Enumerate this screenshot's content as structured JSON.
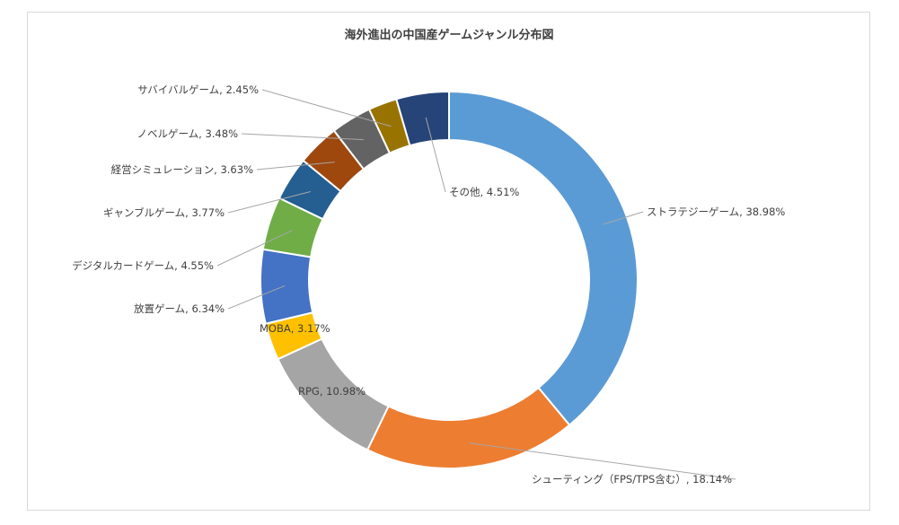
{
  "chart_data": {
    "type": "pie",
    "variant": "doughnut",
    "title": "海外進出の中国産ゲームジャンル分布図",
    "slices": [
      {
        "label": "ストラテジーゲーム",
        "value": 38.98,
        "display": "ストラテジーゲーム, 38.98%",
        "color": "#5b9bd5"
      },
      {
        "label": "シューティング（FPS/TPS含む）",
        "value": 18.14,
        "display": "シューティング（FPS/TPS含む）, 18.14%",
        "color": "#ed7d31"
      },
      {
        "label": "RPG",
        "value": 10.98,
        "display": "RPG, 10.98%",
        "color": "#a5a5a5"
      },
      {
        "label": "MOBA",
        "value": 3.17,
        "display": "MOBA, 3.17%",
        "color": "#ffc000"
      },
      {
        "label": "放置ゲーム",
        "value": 6.34,
        "display": "放置ゲーム, 6.34%",
        "color": "#4472c4"
      },
      {
        "label": "デジタルカードゲーム",
        "value": 4.55,
        "display": "デジタルカードゲーム, 4.55%",
        "color": "#70ad47"
      },
      {
        "label": "ギャンブルゲーム",
        "value": 3.77,
        "display": "ギャンブルゲーム, 3.77%",
        "color": "#255e91"
      },
      {
        "label": "経営シミュレーション",
        "value": 3.63,
        "display": "経営シミュレーション, 3.63%",
        "color": "#9e480e"
      },
      {
        "label": "ノベルゲーム",
        "value": 3.48,
        "display": "ノベルゲーム, 3.48%",
        "color": "#636363"
      },
      {
        "label": "サバイバルゲーム",
        "value": 2.45,
        "display": "サバイバルゲーム, 2.45%",
        "color": "#997300"
      },
      {
        "label": "その他",
        "value": 4.51,
        "display": "その他, 4.51%",
        "color": "#264478"
      }
    ]
  }
}
